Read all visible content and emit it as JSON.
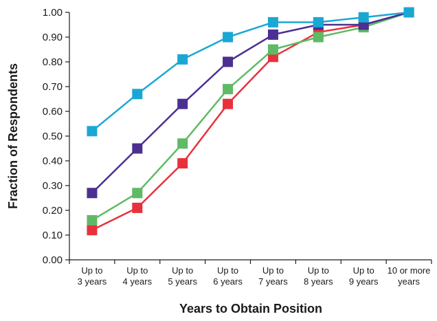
{
  "chart_data": {
    "type": "line",
    "title": "",
    "xlabel": "Years to Obtain Position",
    "ylabel": "Fraction of Respondents",
    "ylim": [
      0,
      1
    ],
    "yticks": [
      "0.00",
      "0.10",
      "0.20",
      "0.30",
      "0.40",
      "0.50",
      "0.60",
      "0.70",
      "0.80",
      "0.90",
      "1.00"
    ],
    "categories": [
      [
        "Up to",
        "3 years"
      ],
      [
        "Up to",
        "4 years"
      ],
      [
        "Up to",
        "5 years"
      ],
      [
        "Up to",
        "6 years"
      ],
      [
        "Up to",
        "7 years"
      ],
      [
        "Up to",
        "8 years"
      ],
      [
        "Up to",
        "9 years"
      ],
      [
        "10 or more",
        "years"
      ]
    ],
    "grid": false,
    "legend": "none",
    "series": [
      {
        "color": "#1aa7d4",
        "values": [
          0.52,
          0.67,
          0.81,
          0.9,
          0.96,
          0.96,
          0.98,
          1.0
        ]
      },
      {
        "color": "#4b2f91",
        "values": [
          0.27,
          0.45,
          0.63,
          0.8,
          0.91,
          0.95,
          0.95,
          1.0
        ]
      },
      {
        "color": "#5fba65",
        "values": [
          0.16,
          0.27,
          0.47,
          0.69,
          0.85,
          0.9,
          0.94,
          1.0
        ]
      },
      {
        "color": "#e8313b",
        "values": [
          0.12,
          0.21,
          0.39,
          0.63,
          0.82,
          0.92,
          0.95,
          1.0
        ]
      }
    ]
  }
}
